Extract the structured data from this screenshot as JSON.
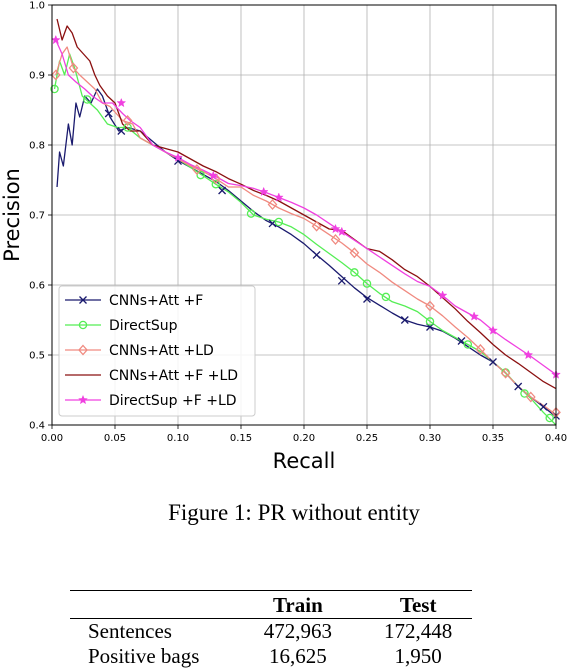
{
  "figure": {
    "caption": "Figure 1: PR without entity"
  },
  "chart_data": {
    "type": "line",
    "title": "",
    "xlabel": "Recall",
    "ylabel": "Precision",
    "xlim": [
      0.0,
      0.4
    ],
    "ylim": [
      0.4,
      1.0
    ],
    "x_ticks": [
      "0.00",
      "0.05",
      "0.10",
      "0.15",
      "0.20",
      "0.25",
      "0.30",
      "0.35",
      "0.40"
    ],
    "y_ticks": [
      "0.4",
      "0.5",
      "0.6",
      "0.7",
      "0.8",
      "0.9",
      "1.0"
    ],
    "grid": true,
    "legend": "lower-left",
    "series": [
      {
        "name": "CNNs+Att +F",
        "color": "#1a1a6e",
        "marker": "x",
        "points": [
          [
            0.004,
            0.74
          ],
          [
            0.006,
            0.79
          ],
          [
            0.009,
            0.77
          ],
          [
            0.013,
            0.83
          ],
          [
            0.016,
            0.8
          ],
          [
            0.019,
            0.86
          ],
          [
            0.022,
            0.84
          ],
          [
            0.026,
            0.87
          ],
          [
            0.031,
            0.86
          ],
          [
            0.036,
            0.88
          ],
          [
            0.04,
            0.87
          ],
          [
            0.046,
            0.84
          ],
          [
            0.053,
            0.82
          ],
          [
            0.06,
            0.825
          ],
          [
            0.07,
            0.82
          ],
          [
            0.08,
            0.805
          ],
          [
            0.09,
            0.79
          ],
          [
            0.1,
            0.778
          ],
          [
            0.11,
            0.768
          ],
          [
            0.12,
            0.758
          ],
          [
            0.13,
            0.748
          ],
          [
            0.14,
            0.735
          ],
          [
            0.15,
            0.72
          ],
          [
            0.16,
            0.705
          ],
          [
            0.17,
            0.692
          ],
          [
            0.18,
            0.683
          ],
          [
            0.19,
            0.672
          ],
          [
            0.2,
            0.659
          ],
          [
            0.21,
            0.643
          ],
          [
            0.22,
            0.628
          ],
          [
            0.23,
            0.612
          ],
          [
            0.24,
            0.596
          ],
          [
            0.25,
            0.582
          ],
          [
            0.26,
            0.571
          ],
          [
            0.27,
            0.56
          ],
          [
            0.28,
            0.55
          ],
          [
            0.29,
            0.544
          ],
          [
            0.3,
            0.54
          ],
          [
            0.31,
            0.534
          ],
          [
            0.32,
            0.524
          ],
          [
            0.33,
            0.512
          ],
          [
            0.34,
            0.5
          ],
          [
            0.35,
            0.49
          ],
          [
            0.36,
            0.474
          ],
          [
            0.37,
            0.455
          ],
          [
            0.38,
            0.44
          ],
          [
            0.39,
            0.426
          ],
          [
            0.4,
            0.412
          ]
        ],
        "markers": [
          [
            0.045,
            0.845
          ],
          [
            0.055,
            0.82
          ],
          [
            0.1,
            0.777
          ],
          [
            0.135,
            0.735
          ],
          [
            0.175,
            0.688
          ],
          [
            0.21,
            0.643
          ],
          [
            0.23,
            0.606
          ],
          [
            0.25,
            0.58
          ],
          [
            0.28,
            0.55
          ],
          [
            0.3,
            0.54
          ],
          [
            0.325,
            0.52
          ],
          [
            0.35,
            0.49
          ],
          [
            0.37,
            0.455
          ],
          [
            0.39,
            0.426
          ],
          [
            0.4,
            0.413
          ]
        ]
      },
      {
        "name": "DirectSup",
        "color": "#55ee55",
        "marker": "o",
        "points": [
          [
            0.002,
            0.88
          ],
          [
            0.006,
            0.92
          ],
          [
            0.01,
            0.9
          ],
          [
            0.014,
            0.93
          ],
          [
            0.018,
            0.91
          ],
          [
            0.024,
            0.87
          ],
          [
            0.03,
            0.86
          ],
          [
            0.036,
            0.85
          ],
          [
            0.044,
            0.83
          ],
          [
            0.052,
            0.825
          ],
          [
            0.06,
            0.825
          ],
          [
            0.07,
            0.81
          ],
          [
            0.08,
            0.8
          ],
          [
            0.09,
            0.79
          ],
          [
            0.1,
            0.78
          ],
          [
            0.11,
            0.768
          ],
          [
            0.12,
            0.756
          ],
          [
            0.13,
            0.744
          ],
          [
            0.14,
            0.733
          ],
          [
            0.15,
            0.718
          ],
          [
            0.16,
            0.7
          ],
          [
            0.17,
            0.694
          ],
          [
            0.18,
            0.69
          ],
          [
            0.19,
            0.683
          ],
          [
            0.2,
            0.672
          ],
          [
            0.21,
            0.658
          ],
          [
            0.22,
            0.645
          ],
          [
            0.23,
            0.632
          ],
          [
            0.24,
            0.618
          ],
          [
            0.25,
            0.602
          ],
          [
            0.26,
            0.588
          ],
          [
            0.27,
            0.576
          ],
          [
            0.28,
            0.57
          ],
          [
            0.29,
            0.562
          ],
          [
            0.3,
            0.548
          ],
          [
            0.31,
            0.535
          ],
          [
            0.32,
            0.525
          ],
          [
            0.33,
            0.515
          ],
          [
            0.34,
            0.505
          ],
          [
            0.35,
            0.49
          ],
          [
            0.36,
            0.475
          ],
          [
            0.37,
            0.455
          ],
          [
            0.38,
            0.438
          ],
          [
            0.39,
            0.418
          ],
          [
            0.4,
            0.4
          ]
        ],
        "markers": [
          [
            0.002,
            0.88
          ],
          [
            0.028,
            0.865
          ],
          [
            0.06,
            0.825
          ],
          [
            0.118,
            0.757
          ],
          [
            0.13,
            0.744
          ],
          [
            0.158,
            0.702
          ],
          [
            0.18,
            0.69
          ],
          [
            0.24,
            0.618
          ],
          [
            0.25,
            0.602
          ],
          [
            0.265,
            0.583
          ],
          [
            0.3,
            0.548
          ],
          [
            0.33,
            0.515
          ],
          [
            0.36,
            0.475
          ],
          [
            0.375,
            0.445
          ],
          [
            0.395,
            0.41
          ]
        ]
      },
      {
        "name": "CNNs+Att +LD",
        "color": "#f08a80",
        "marker": "D",
        "points": [
          [
            0.003,
            0.9
          ],
          [
            0.008,
            0.93
          ],
          [
            0.012,
            0.94
          ],
          [
            0.017,
            0.91
          ],
          [
            0.022,
            0.9
          ],
          [
            0.028,
            0.89
          ],
          [
            0.034,
            0.88
          ],
          [
            0.04,
            0.86
          ],
          [
            0.046,
            0.855
          ],
          [
            0.056,
            0.835
          ],
          [
            0.064,
            0.83
          ],
          [
            0.07,
            0.81
          ],
          [
            0.08,
            0.8
          ],
          [
            0.09,
            0.79
          ],
          [
            0.1,
            0.78
          ],
          [
            0.11,
            0.77
          ],
          [
            0.12,
            0.762
          ],
          [
            0.13,
            0.752
          ],
          [
            0.14,
            0.74
          ],
          [
            0.15,
            0.74
          ],
          [
            0.16,
            0.728
          ],
          [
            0.17,
            0.72
          ],
          [
            0.18,
            0.71
          ],
          [
            0.19,
            0.702
          ],
          [
            0.2,
            0.695
          ],
          [
            0.21,
            0.684
          ],
          [
            0.22,
            0.672
          ],
          [
            0.23,
            0.66
          ],
          [
            0.24,
            0.646
          ],
          [
            0.25,
            0.63
          ],
          [
            0.26,
            0.618
          ],
          [
            0.27,
            0.604
          ],
          [
            0.28,
            0.592
          ],
          [
            0.29,
            0.58
          ],
          [
            0.3,
            0.57
          ],
          [
            0.31,
            0.556
          ],
          [
            0.32,
            0.54
          ],
          [
            0.33,
            0.525
          ],
          [
            0.34,
            0.508
          ],
          [
            0.35,
            0.49
          ],
          [
            0.36,
            0.474
          ],
          [
            0.37,
            0.455
          ],
          [
            0.38,
            0.44
          ],
          [
            0.39,
            0.428
          ],
          [
            0.4,
            0.415
          ]
        ],
        "markers": [
          [
            0.003,
            0.9
          ],
          [
            0.017,
            0.91
          ],
          [
            0.06,
            0.835
          ],
          [
            0.115,
            0.765
          ],
          [
            0.13,
            0.752
          ],
          [
            0.175,
            0.715
          ],
          [
            0.21,
            0.684
          ],
          [
            0.225,
            0.665
          ],
          [
            0.24,
            0.646
          ],
          [
            0.3,
            0.57
          ],
          [
            0.34,
            0.508
          ],
          [
            0.36,
            0.474
          ],
          [
            0.38,
            0.44
          ],
          [
            0.4,
            0.418
          ]
        ]
      },
      {
        "name": "CNNs+Att +F +LD",
        "color": "#8b1010",
        "marker": "none",
        "points": [
          [
            0.004,
            0.98
          ],
          [
            0.008,
            0.95
          ],
          [
            0.012,
            0.97
          ],
          [
            0.016,
            0.96
          ],
          [
            0.02,
            0.94
          ],
          [
            0.025,
            0.93
          ],
          [
            0.03,
            0.92
          ],
          [
            0.034,
            0.9
          ],
          [
            0.038,
            0.885
          ],
          [
            0.044,
            0.87
          ],
          [
            0.05,
            0.86
          ],
          [
            0.056,
            0.83
          ],
          [
            0.062,
            0.82
          ],
          [
            0.07,
            0.82
          ],
          [
            0.08,
            0.8
          ],
          [
            0.09,
            0.795
          ],
          [
            0.1,
            0.79
          ],
          [
            0.11,
            0.78
          ],
          [
            0.12,
            0.77
          ],
          [
            0.13,
            0.762
          ],
          [
            0.14,
            0.752
          ],
          [
            0.15,
            0.744
          ],
          [
            0.16,
            0.735
          ],
          [
            0.17,
            0.728
          ],
          [
            0.18,
            0.72
          ],
          [
            0.19,
            0.71
          ],
          [
            0.2,
            0.7
          ],
          [
            0.21,
            0.69
          ],
          [
            0.22,
            0.68
          ],
          [
            0.23,
            0.678
          ],
          [
            0.24,
            0.665
          ],
          [
            0.25,
            0.652
          ],
          [
            0.26,
            0.648
          ],
          [
            0.27,
            0.636
          ],
          [
            0.28,
            0.622
          ],
          [
            0.29,
            0.612
          ],
          [
            0.3,
            0.598
          ],
          [
            0.31,
            0.582
          ],
          [
            0.32,
            0.566
          ],
          [
            0.33,
            0.548
          ],
          [
            0.34,
            0.532
          ],
          [
            0.35,
            0.515
          ],
          [
            0.36,
            0.5
          ],
          [
            0.37,
            0.488
          ],
          [
            0.38,
            0.475
          ],
          [
            0.39,
            0.462
          ],
          [
            0.4,
            0.452
          ]
        ]
      },
      {
        "name": "DirectSup +F +LD",
        "color": "#f040e0",
        "marker": "*",
        "points": [
          [
            0.003,
            0.95
          ],
          [
            0.008,
            0.93
          ],
          [
            0.013,
            0.9
          ],
          [
            0.019,
            0.89
          ],
          [
            0.026,
            0.88
          ],
          [
            0.032,
            0.87
          ],
          [
            0.04,
            0.86
          ],
          [
            0.048,
            0.86
          ],
          [
            0.056,
            0.845
          ],
          [
            0.062,
            0.835
          ],
          [
            0.07,
            0.825
          ],
          [
            0.08,
            0.8
          ],
          [
            0.09,
            0.79
          ],
          [
            0.1,
            0.782
          ],
          [
            0.11,
            0.772
          ],
          [
            0.12,
            0.764
          ],
          [
            0.13,
            0.755
          ],
          [
            0.14,
            0.745
          ],
          [
            0.15,
            0.742
          ],
          [
            0.16,
            0.738
          ],
          [
            0.17,
            0.732
          ],
          [
            0.18,
            0.725
          ],
          [
            0.19,
            0.718
          ],
          [
            0.2,
            0.71
          ],
          [
            0.21,
            0.7
          ],
          [
            0.22,
            0.688
          ],
          [
            0.23,
            0.676
          ],
          [
            0.24,
            0.664
          ],
          [
            0.25,
            0.652
          ],
          [
            0.26,
            0.64
          ],
          [
            0.27,
            0.628
          ],
          [
            0.28,
            0.616
          ],
          [
            0.29,
            0.605
          ],
          [
            0.3,
            0.598
          ],
          [
            0.31,
            0.585
          ],
          [
            0.32,
            0.57
          ],
          [
            0.33,
            0.56
          ],
          [
            0.34,
            0.55
          ],
          [
            0.35,
            0.535
          ],
          [
            0.36,
            0.522
          ],
          [
            0.37,
            0.51
          ],
          [
            0.38,
            0.498
          ],
          [
            0.39,
            0.485
          ],
          [
            0.4,
            0.472
          ]
        ],
        "markers": [
          [
            0.003,
            0.95
          ],
          [
            0.055,
            0.86
          ],
          [
            0.1,
            0.782
          ],
          [
            0.128,
            0.756
          ],
          [
            0.168,
            0.733
          ],
          [
            0.18,
            0.725
          ],
          [
            0.225,
            0.68
          ],
          [
            0.23,
            0.676
          ],
          [
            0.31,
            0.585
          ],
          [
            0.335,
            0.555
          ],
          [
            0.35,
            0.535
          ],
          [
            0.378,
            0.5
          ],
          [
            0.4,
            0.472
          ]
        ]
      }
    ]
  },
  "table": {
    "headers": [
      "",
      "Train",
      "Test"
    ],
    "rows": [
      [
        "Sentences",
        "472,963",
        "172,448"
      ],
      [
        "Positive bags",
        "16,625",
        "1,950"
      ]
    ]
  }
}
